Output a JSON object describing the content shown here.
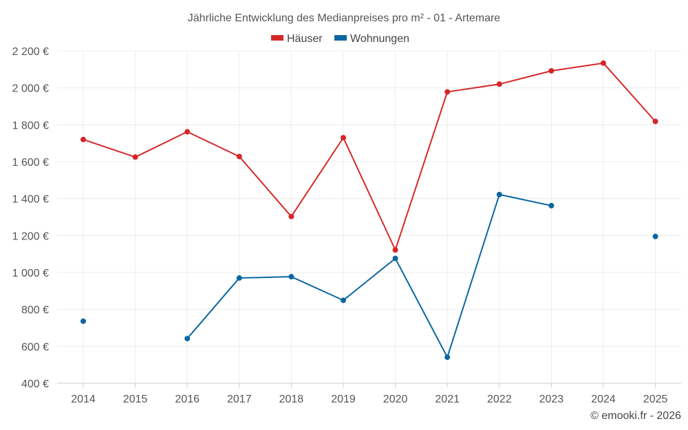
{
  "chart_data": {
    "type": "line",
    "title": "Jährliche Entwicklung des Medianpreises pro m² - 01 - Artemare",
    "categories": [
      "2014",
      "2015",
      "2016",
      "2017",
      "2018",
      "2019",
      "2020",
      "2021",
      "2022",
      "2023",
      "2024",
      "2025"
    ],
    "series": [
      {
        "name": "Häuser",
        "color": "#d62728",
        "values": [
          1720,
          1625,
          1762,
          1628,
          1303,
          1730,
          1122,
          1978,
          2020,
          2092,
          2134,
          1818
        ]
      },
      {
        "name": "Wohnungen",
        "color": "#0a66a1",
        "values": [
          736,
          null,
          642,
          970,
          977,
          849,
          1076,
          541,
          1422,
          1362,
          null,
          1195
        ]
      }
    ],
    "ylim": [
      400,
      2200
    ],
    "yticks": [
      400,
      600,
      800,
      1000,
      1200,
      1400,
      1600,
      1800,
      2000,
      2200
    ],
    "ytick_labels": [
      "400 €",
      "600 €",
      "800 €",
      "1 000 €",
      "1 200 €",
      "1 400 €",
      "1 600 €",
      "1 800 €",
      "2 000 €",
      "2 200 €"
    ],
    "xlabel": "",
    "ylabel": "",
    "grid": true,
    "legend_position": "top-center"
  },
  "credit": "© emooki.fr - 2026"
}
